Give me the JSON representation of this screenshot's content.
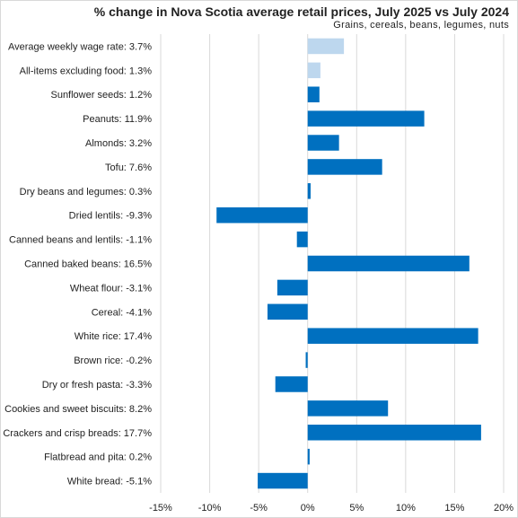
{
  "chart_data": {
    "type": "bar",
    "orientation": "horizontal",
    "title": "% change in Nova Scotia average retail prices, July 2025 vs July 2024",
    "subtitle": "Grains, cereals, beans, legumes, nuts",
    "xlabel": "",
    "ylabel": "",
    "xlim": [
      -15,
      20
    ],
    "xticks": [
      -15,
      -10,
      -5,
      0,
      5,
      10,
      15,
      20
    ],
    "tick_format": "percent",
    "grid": true,
    "legend": "none",
    "categories": [
      "Average weekly wage rate: 3.7%",
      "All-items excluding food: 1.3%",
      "Sunflower seeds: 1.2%",
      "Peanuts: 11.9%",
      "Almonds: 3.2%",
      "Tofu: 7.6%",
      "Dry beans and legumes: 0.3%",
      "Dried lentils: -9.3%",
      "Canned beans and lentils: -1.1%",
      "Canned baked beans: 16.5%",
      "Wheat flour: -3.1%",
      "Cereal: -4.1%",
      "White rice: 17.4%",
      "Brown rice: -0.2%",
      "Dry or fresh pasta: -3.3%",
      "Cookies and sweet biscuits: 8.2%",
      "Crackers and crisp breads: 17.7%",
      "Flatbread and pita: 0.2%",
      "White bread: -5.1%"
    ],
    "values": [
      3.7,
      1.3,
      1.2,
      11.9,
      3.2,
      7.6,
      0.3,
      -9.3,
      -1.1,
      16.5,
      -3.1,
      -4.1,
      17.4,
      -0.2,
      -3.3,
      8.2,
      17.7,
      0.2,
      -5.1
    ],
    "bar_colors": [
      "#bdd7ee",
      "#bdd7ee",
      "#0070c0",
      "#0070c0",
      "#0070c0",
      "#0070c0",
      "#0070c0",
      "#0070c0",
      "#0070c0",
      "#0070c0",
      "#0070c0",
      "#0070c0",
      "#0070c0",
      "#0070c0",
      "#0070c0",
      "#0070c0",
      "#0070c0",
      "#0070c0",
      "#0070c0"
    ],
    "grid_color": "#d9d9d9",
    "text_color": "#222222"
  }
}
